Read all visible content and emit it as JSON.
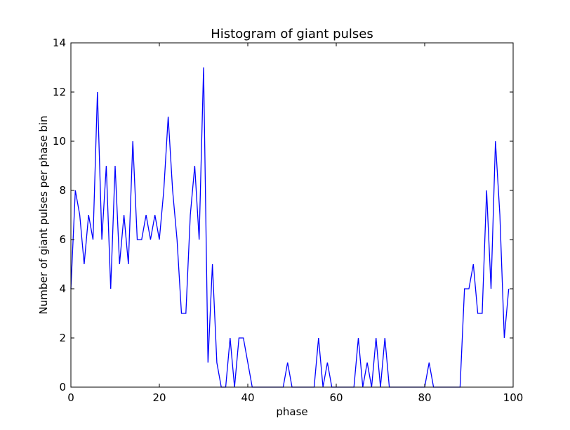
{
  "chart_data": {
    "type": "line",
    "title": "Histogram of giant pulses",
    "xlabel": "phase",
    "ylabel": "Number of giant pulses per phase bin",
    "xlim": [
      0,
      100
    ],
    "ylim": [
      0,
      14
    ],
    "xticks": [
      0,
      20,
      40,
      60,
      80,
      100
    ],
    "yticks": [
      0,
      2,
      4,
      6,
      8,
      10,
      12,
      14
    ],
    "grid": false,
    "line_color": "#0000ff",
    "x": [
      0,
      1,
      2,
      3,
      4,
      5,
      6,
      7,
      8,
      9,
      10,
      11,
      12,
      13,
      14,
      15,
      16,
      17,
      18,
      19,
      20,
      21,
      22,
      23,
      24,
      25,
      26,
      27,
      28,
      29,
      30,
      31,
      32,
      33,
      34,
      35,
      36,
      37,
      38,
      39,
      40,
      41,
      42,
      43,
      44,
      45,
      46,
      47,
      48,
      49,
      50,
      51,
      52,
      53,
      54,
      55,
      56,
      57,
      58,
      59,
      60,
      61,
      62,
      63,
      64,
      65,
      66,
      67,
      68,
      69,
      70,
      71,
      72,
      73,
      74,
      75,
      76,
      77,
      78,
      79,
      80,
      81,
      82,
      83,
      84,
      85,
      86,
      87,
      88,
      89,
      90,
      91,
      92,
      93,
      94,
      95,
      96,
      97,
      98,
      99
    ],
    "y": [
      4,
      8,
      7,
      5,
      7,
      6,
      12,
      6,
      9,
      4,
      9,
      5,
      7,
      5,
      10,
      6,
      6,
      7,
      6,
      7,
      6,
      8,
      11,
      8,
      6,
      3,
      3,
      7,
      9,
      6,
      13,
      1,
      5,
      1,
      0,
      0,
      2,
      0,
      2,
      2,
      1,
      0,
      0,
      0,
      0,
      0,
      0,
      0,
      0,
      1,
      0,
      0,
      0,
      0,
      0,
      0,
      2,
      0,
      1,
      0,
      0,
      0,
      0,
      0,
      0,
      2,
      0,
      1,
      0,
      2,
      0,
      2,
      0,
      0,
      0,
      0,
      0,
      0,
      0,
      0,
      0,
      1,
      0,
      0,
      0,
      0,
      0,
      0,
      0,
      4,
      4,
      5,
      3,
      3,
      8,
      4,
      10,
      7,
      2,
      4
    ]
  }
}
